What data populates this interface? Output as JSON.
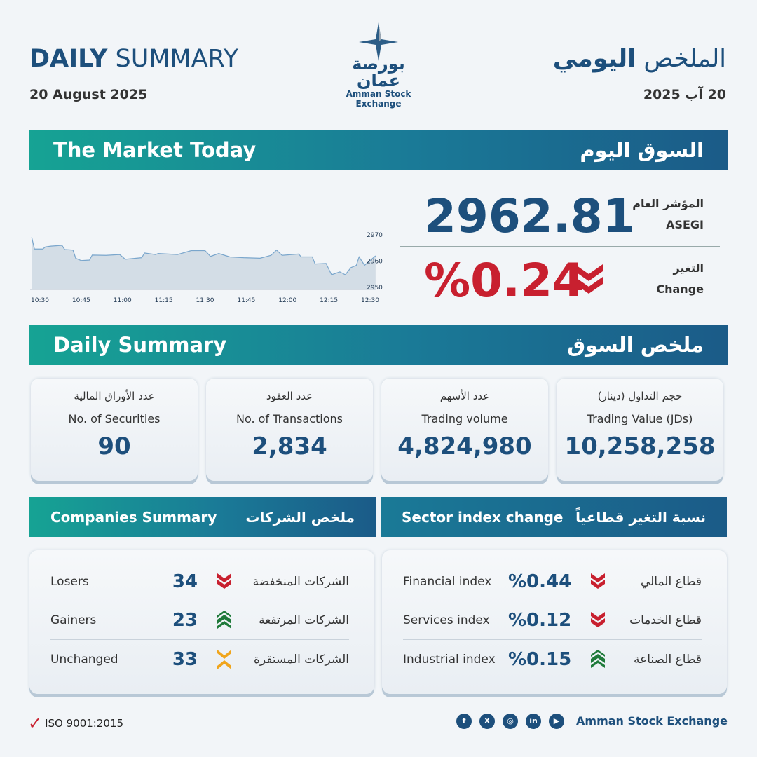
{
  "header": {
    "title_bold": "DAILY",
    "title_rest": " SUMMARY",
    "date_en": "20 August 2025",
    "title_ar_light": "الملخص ",
    "title_ar_bold": "اليومي",
    "date_ar": "20 آب 2025",
    "logo_ar": "بورصة عمان",
    "logo_en": "Amman Stock Exchange"
  },
  "market": {
    "band_en": "The Market Today",
    "band_ar": "السوق اليوم",
    "index_label_ar": "المؤشر العام",
    "index_label_en": "ASEGI",
    "index_value": "2962.81",
    "change_label_ar": "التغير",
    "change_label_en": "Change",
    "change_value": "%0.24",
    "change_direction": "down"
  },
  "colors": {
    "down": "#c8202f",
    "up": "#1f7a3a",
    "unchanged": "#f0a51c",
    "text": "#1d4f7c"
  },
  "chart_data": {
    "type": "area",
    "x_ticks": [
      "10:30",
      "10:45",
      "11:00",
      "11:15",
      "11:30",
      "11:45",
      "12:00",
      "12:15",
      "12:30"
    ],
    "y_ticks": [
      2950,
      2960,
      2970
    ],
    "ylim": [
      2950,
      2970
    ],
    "points": [
      [
        "10:27",
        2969.1
      ],
      [
        "10:28",
        2964.6
      ],
      [
        "10:31",
        2964.6
      ],
      [
        "10:32",
        2965.4
      ],
      [
        "10:34",
        2965.7
      ],
      [
        "10:38",
        2966
      ],
      [
        "10:39",
        2964.4
      ],
      [
        "10:42",
        2964.2
      ],
      [
        "10:43",
        2961.1
      ],
      [
        "10:45",
        2960.2
      ],
      [
        "10:48",
        2960.4
      ],
      [
        "10:49",
        2962.3
      ],
      [
        "10:54",
        2962.2
      ],
      [
        "10:59",
        2962.5
      ],
      [
        "11:01",
        2960.7
      ],
      [
        "11:07",
        2961.3
      ],
      [
        "11:08",
        2963.1
      ],
      [
        "11:12",
        2962.5
      ],
      [
        "11:13",
        2962.9
      ],
      [
        "11:20",
        2962.5
      ],
      [
        "11:25",
        2964
      ],
      [
        "11:30",
        2964
      ],
      [
        "11:32",
        2961.8
      ],
      [
        "11:35",
        2962.9
      ],
      [
        "11:39",
        2961.6
      ],
      [
        "11:44",
        2961.3
      ],
      [
        "11:50",
        2961.1
      ],
      [
        "11:54",
        2962.2
      ],
      [
        "11:56",
        2964.2
      ],
      [
        "11:58",
        2962.2
      ],
      [
        "12:04",
        2962.7
      ],
      [
        "12:05",
        2961.6
      ],
      [
        "12:09",
        2961.6
      ],
      [
        "12:10",
        2958.9
      ],
      [
        "12:14",
        2959.1
      ],
      [
        "12:16",
        2954.8
      ],
      [
        "12:19",
        2955.9
      ],
      [
        "12:21",
        2954.8
      ],
      [
        "12:23",
        2957.5
      ],
      [
        "12:25",
        2958.4
      ],
      [
        "12:26",
        2961.6
      ],
      [
        "12:28",
        2958.4
      ],
      [
        "12:32",
        2962
      ]
    ]
  },
  "summary": {
    "band_en": "Daily Summary",
    "band_ar": "ملخص السوق",
    "stats": [
      {
        "ar": "عدد الأوراق المالية",
        "en": "No. of Securities",
        "value": "90"
      },
      {
        "ar": "عدد العقود",
        "en": "No. of Transactions",
        "value": "2,834"
      },
      {
        "ar": "عدد الأسهم",
        "en": "Trading volume",
        "value": "4,824,980"
      },
      {
        "ar": "حجم التداول (دينار)",
        "en": "Trading Value (JDs)",
        "value": "10,258,258"
      }
    ]
  },
  "companies": {
    "band_en": "Companies Summary",
    "band_ar": "ملخص الشركات",
    "rows": [
      {
        "en": "Losers",
        "value": "34",
        "icon": "chevron-double-down",
        "ar": "الشركات المنخفضة"
      },
      {
        "en": "Gainers",
        "value": "23",
        "icon": "chevron-double-up",
        "ar": "الشركات المرتفعة"
      },
      {
        "en": "Unchanged",
        "value": "33",
        "icon": "chevron-converge",
        "ar": "الشركات المستقرة"
      }
    ]
  },
  "sectors": {
    "band_en": "Sector index change",
    "band_ar": "نسبة التغير قطاعياً",
    "rows": [
      {
        "en": "Financial index",
        "value": "%0.44",
        "icon": "chevron-double-down",
        "ar": "قطاع المالي"
      },
      {
        "en": "Services index",
        "value": "%0.12",
        "icon": "chevron-double-down",
        "ar": "قطاع الخدمات"
      },
      {
        "en": "Industrial index",
        "value": "%0.15",
        "icon": "chevron-double-up",
        "ar": "قطاع الصناعة"
      }
    ]
  },
  "footer": {
    "iso": "ISO 9001:2015",
    "brand": "Amman Stock Exchange",
    "social": [
      "f",
      "X",
      "◎",
      "in",
      "▶"
    ]
  }
}
